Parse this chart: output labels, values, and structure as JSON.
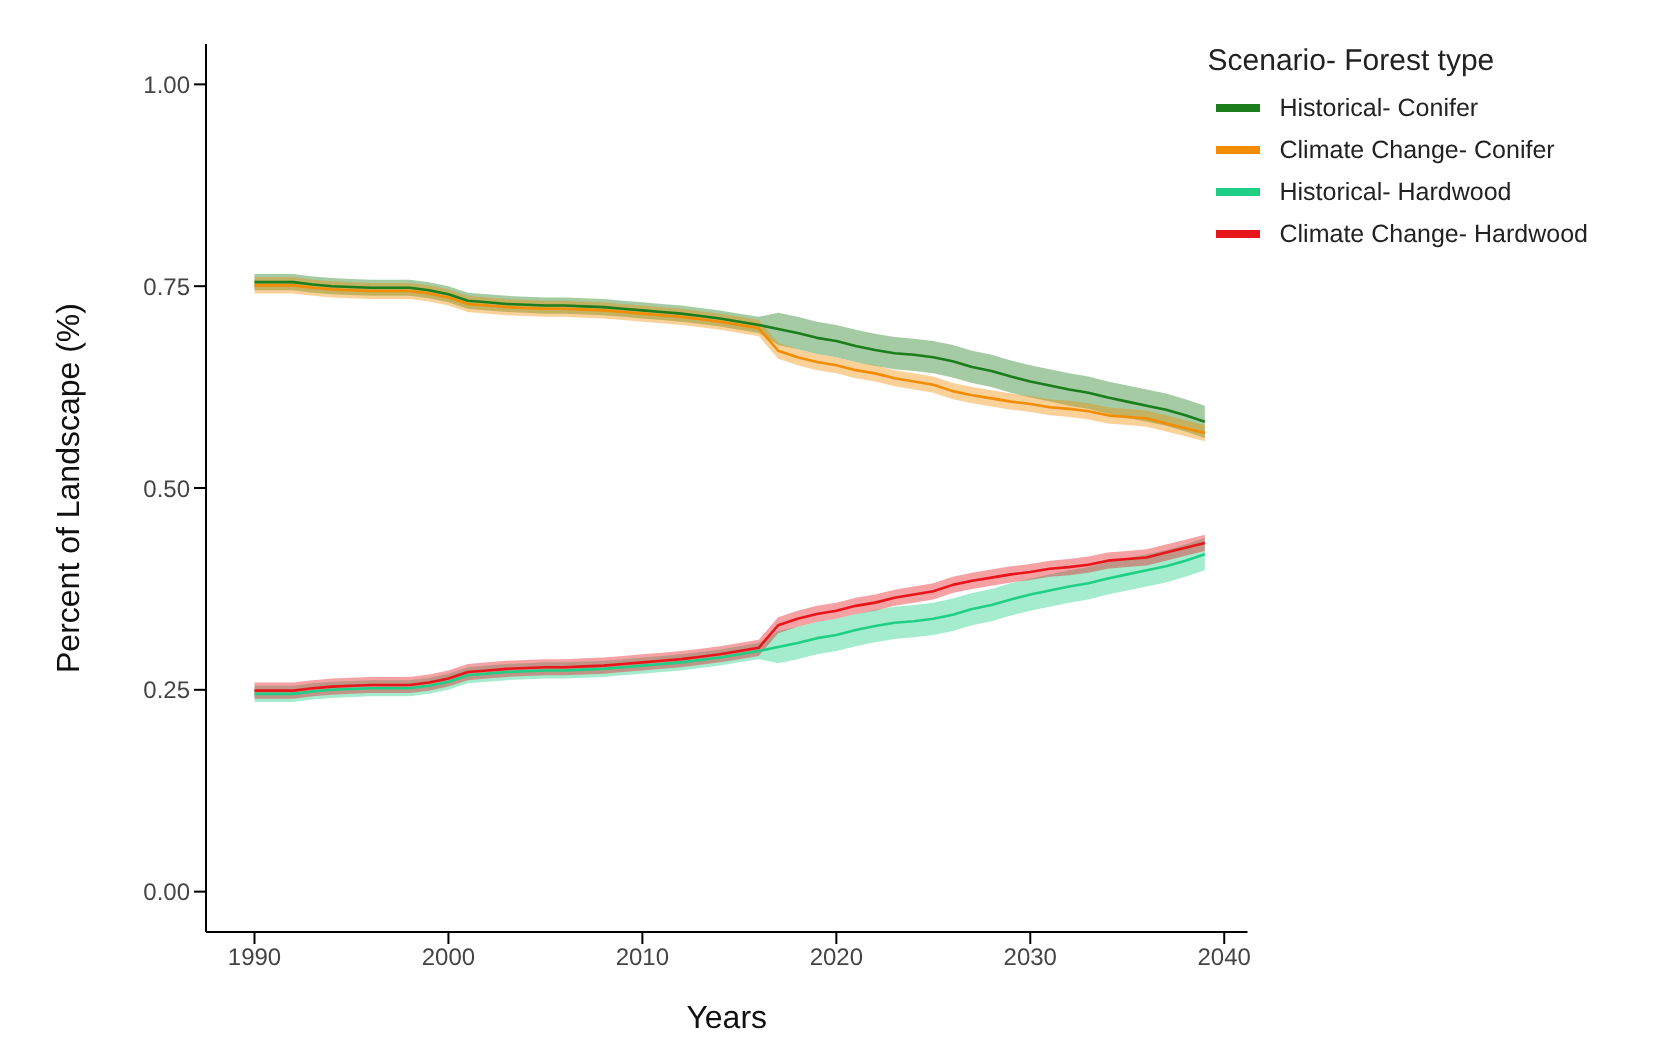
{
  "chart_data": {
    "type": "line",
    "xlabel": "Years",
    "ylabel": "Percent of Landscape (%)",
    "legend_title": "Scenario- Forest type",
    "legend": "top right",
    "grid": false,
    "x": [
      1990,
      1991,
      1992,
      1993,
      1994,
      1995,
      1996,
      1997,
      1998,
      1999,
      2000,
      2001,
      2002,
      2003,
      2004,
      2005,
      2006,
      2007,
      2008,
      2009,
      2010,
      2011,
      2012,
      2013,
      2014,
      2015,
      2016,
      2017,
      2018,
      2019,
      2020,
      2021,
      2022,
      2023,
      2024,
      2025,
      2026,
      2027,
      2028,
      2029,
      2030,
      2031,
      2032,
      2033,
      2034,
      2035,
      2036,
      2037,
      2038,
      2039
    ],
    "xlim": [
      1987.5,
      2041.2
    ],
    "xticks": [
      1990,
      2000,
      2010,
      2020,
      2030,
      2040
    ],
    "ylim": [
      -0.05,
      1.05
    ],
    "yticks": [
      {
        "value": 0,
        "label": "0.00"
      },
      {
        "value": 0.25,
        "label": "0.25"
      },
      {
        "value": 0.5,
        "label": "0.50"
      },
      {
        "value": 0.75,
        "label": "0.75"
      },
      {
        "value": 1,
        "label": "1.00"
      }
    ],
    "series": [
      {
        "name": "Historical- Conifer",
        "color": "#1b7d1b",
        "values": [
          0.755,
          0.755,
          0.755,
          0.752,
          0.75,
          0.749,
          0.748,
          0.748,
          0.748,
          0.745,
          0.74,
          0.732,
          0.73,
          0.728,
          0.727,
          0.726,
          0.726,
          0.725,
          0.724,
          0.722,
          0.72,
          0.718,
          0.716,
          0.713,
          0.71,
          0.706,
          0.702,
          0.697,
          0.692,
          0.686,
          0.682,
          0.676,
          0.671,
          0.667,
          0.665,
          0.662,
          0.657,
          0.65,
          0.645,
          0.638,
          0.632,
          0.627,
          0.622,
          0.618,
          0.612,
          0.607,
          0.602,
          0.597,
          0.59,
          0.582
        ],
        "lower": [
          0.745,
          0.745,
          0.745,
          0.742,
          0.74,
          0.739,
          0.738,
          0.738,
          0.738,
          0.735,
          0.73,
          0.722,
          0.72,
          0.718,
          0.717,
          0.716,
          0.716,
          0.715,
          0.714,
          0.712,
          0.71,
          0.708,
          0.706,
          0.703,
          0.7,
          0.696,
          0.692,
          0.677,
          0.672,
          0.666,
          0.662,
          0.656,
          0.651,
          0.647,
          0.645,
          0.642,
          0.637,
          0.63,
          0.625,
          0.618,
          0.612,
          0.607,
          0.602,
          0.598,
          0.592,
          0.587,
          0.582,
          0.577,
          0.57,
          0.562
        ],
        "upper": [
          0.765,
          0.765,
          0.765,
          0.762,
          0.76,
          0.759,
          0.758,
          0.758,
          0.758,
          0.755,
          0.75,
          0.742,
          0.74,
          0.738,
          0.737,
          0.736,
          0.736,
          0.735,
          0.734,
          0.732,
          0.73,
          0.728,
          0.726,
          0.723,
          0.72,
          0.716,
          0.712,
          0.717,
          0.712,
          0.706,
          0.702,
          0.696,
          0.691,
          0.687,
          0.685,
          0.682,
          0.677,
          0.67,
          0.665,
          0.658,
          0.652,
          0.647,
          0.642,
          0.638,
          0.632,
          0.627,
          0.622,
          0.617,
          0.61,
          0.602
        ]
      },
      {
        "name": "Climate Change- Conifer",
        "color": "#f28c00",
        "values": [
          0.751,
          0.751,
          0.751,
          0.748,
          0.746,
          0.745,
          0.744,
          0.744,
          0.744,
          0.741,
          0.736,
          0.728,
          0.726,
          0.724,
          0.723,
          0.722,
          0.722,
          0.721,
          0.72,
          0.718,
          0.716,
          0.714,
          0.712,
          0.709,
          0.706,
          0.702,
          0.698,
          0.67,
          0.662,
          0.656,
          0.652,
          0.646,
          0.642,
          0.636,
          0.632,
          0.628,
          0.62,
          0.615,
          0.611,
          0.607,
          0.604,
          0.6,
          0.598,
          0.595,
          0.59,
          0.588,
          0.586,
          0.58,
          0.574,
          0.568
        ],
        "lower": [
          0.741,
          0.741,
          0.741,
          0.738,
          0.736,
          0.735,
          0.734,
          0.734,
          0.734,
          0.731,
          0.726,
          0.718,
          0.716,
          0.714,
          0.713,
          0.712,
          0.712,
          0.711,
          0.71,
          0.708,
          0.706,
          0.704,
          0.702,
          0.699,
          0.696,
          0.692,
          0.688,
          0.66,
          0.652,
          0.646,
          0.642,
          0.636,
          0.632,
          0.626,
          0.622,
          0.618,
          0.61,
          0.605,
          0.601,
          0.597,
          0.594,
          0.59,
          0.588,
          0.585,
          0.58,
          0.578,
          0.576,
          0.57,
          0.564,
          0.558
        ],
        "upper": [
          0.761,
          0.761,
          0.761,
          0.758,
          0.756,
          0.755,
          0.754,
          0.754,
          0.754,
          0.751,
          0.746,
          0.738,
          0.736,
          0.734,
          0.733,
          0.732,
          0.732,
          0.731,
          0.73,
          0.728,
          0.726,
          0.724,
          0.722,
          0.719,
          0.716,
          0.712,
          0.708,
          0.68,
          0.672,
          0.666,
          0.662,
          0.656,
          0.652,
          0.646,
          0.642,
          0.638,
          0.63,
          0.625,
          0.621,
          0.617,
          0.614,
          0.61,
          0.608,
          0.605,
          0.6,
          0.598,
          0.596,
          0.59,
          0.584,
          0.578
        ]
      },
      {
        "name": "Historical- Hardwood",
        "color": "#1fcf86",
        "values": [
          0.245,
          0.245,
          0.245,
          0.248,
          0.25,
          0.251,
          0.252,
          0.252,
          0.252,
          0.255,
          0.26,
          0.268,
          0.27,
          0.272,
          0.273,
          0.274,
          0.274,
          0.275,
          0.276,
          0.278,
          0.28,
          0.282,
          0.284,
          0.287,
          0.29,
          0.294,
          0.298,
          0.303,
          0.308,
          0.314,
          0.318,
          0.324,
          0.329,
          0.333,
          0.335,
          0.338,
          0.343,
          0.35,
          0.355,
          0.362,
          0.368,
          0.373,
          0.378,
          0.382,
          0.388,
          0.393,
          0.398,
          0.403,
          0.41,
          0.418
        ],
        "lower": [
          0.235,
          0.235,
          0.235,
          0.238,
          0.24,
          0.241,
          0.242,
          0.242,
          0.242,
          0.245,
          0.25,
          0.258,
          0.26,
          0.262,
          0.263,
          0.264,
          0.264,
          0.265,
          0.266,
          0.268,
          0.27,
          0.272,
          0.274,
          0.277,
          0.28,
          0.284,
          0.288,
          0.283,
          0.288,
          0.294,
          0.298,
          0.304,
          0.309,
          0.313,
          0.315,
          0.318,
          0.323,
          0.33,
          0.335,
          0.342,
          0.348,
          0.353,
          0.358,
          0.362,
          0.368,
          0.373,
          0.378,
          0.383,
          0.39,
          0.398
        ],
        "upper": [
          0.255,
          0.255,
          0.255,
          0.258,
          0.26,
          0.261,
          0.262,
          0.262,
          0.262,
          0.265,
          0.27,
          0.278,
          0.28,
          0.282,
          0.283,
          0.284,
          0.284,
          0.285,
          0.286,
          0.288,
          0.29,
          0.292,
          0.294,
          0.297,
          0.3,
          0.304,
          0.308,
          0.323,
          0.328,
          0.334,
          0.338,
          0.344,
          0.349,
          0.353,
          0.355,
          0.358,
          0.363,
          0.37,
          0.375,
          0.382,
          0.388,
          0.393,
          0.398,
          0.402,
          0.408,
          0.413,
          0.418,
          0.423,
          0.43,
          0.438
        ]
      },
      {
        "name": "Climate Change- Hardwood",
        "color": "#e8151b",
        "values": [
          0.249,
          0.249,
          0.249,
          0.252,
          0.254,
          0.255,
          0.256,
          0.256,
          0.256,
          0.259,
          0.264,
          0.272,
          0.274,
          0.276,
          0.277,
          0.278,
          0.278,
          0.279,
          0.28,
          0.282,
          0.284,
          0.286,
          0.288,
          0.291,
          0.294,
          0.298,
          0.302,
          0.33,
          0.338,
          0.344,
          0.348,
          0.354,
          0.358,
          0.364,
          0.368,
          0.372,
          0.38,
          0.385,
          0.389,
          0.393,
          0.396,
          0.4,
          0.402,
          0.405,
          0.41,
          0.412,
          0.414,
          0.42,
          0.426,
          0.432
        ],
        "lower": [
          0.239,
          0.239,
          0.239,
          0.242,
          0.244,
          0.245,
          0.246,
          0.246,
          0.246,
          0.249,
          0.254,
          0.262,
          0.264,
          0.266,
          0.267,
          0.268,
          0.268,
          0.269,
          0.27,
          0.272,
          0.274,
          0.276,
          0.278,
          0.281,
          0.284,
          0.288,
          0.292,
          0.32,
          0.328,
          0.334,
          0.338,
          0.344,
          0.348,
          0.354,
          0.358,
          0.362,
          0.37,
          0.375,
          0.379,
          0.383,
          0.386,
          0.39,
          0.392,
          0.395,
          0.4,
          0.402,
          0.404,
          0.41,
          0.416,
          0.422
        ],
        "upper": [
          0.259,
          0.259,
          0.259,
          0.262,
          0.264,
          0.265,
          0.266,
          0.266,
          0.266,
          0.269,
          0.274,
          0.282,
          0.284,
          0.286,
          0.287,
          0.288,
          0.288,
          0.289,
          0.29,
          0.292,
          0.294,
          0.296,
          0.298,
          0.301,
          0.304,
          0.308,
          0.312,
          0.34,
          0.348,
          0.354,
          0.358,
          0.364,
          0.368,
          0.374,
          0.378,
          0.382,
          0.39,
          0.395,
          0.399,
          0.403,
          0.406,
          0.41,
          0.412,
          0.415,
          0.42,
          0.422,
          0.424,
          0.43,
          0.436,
          0.442
        ]
      }
    ]
  }
}
